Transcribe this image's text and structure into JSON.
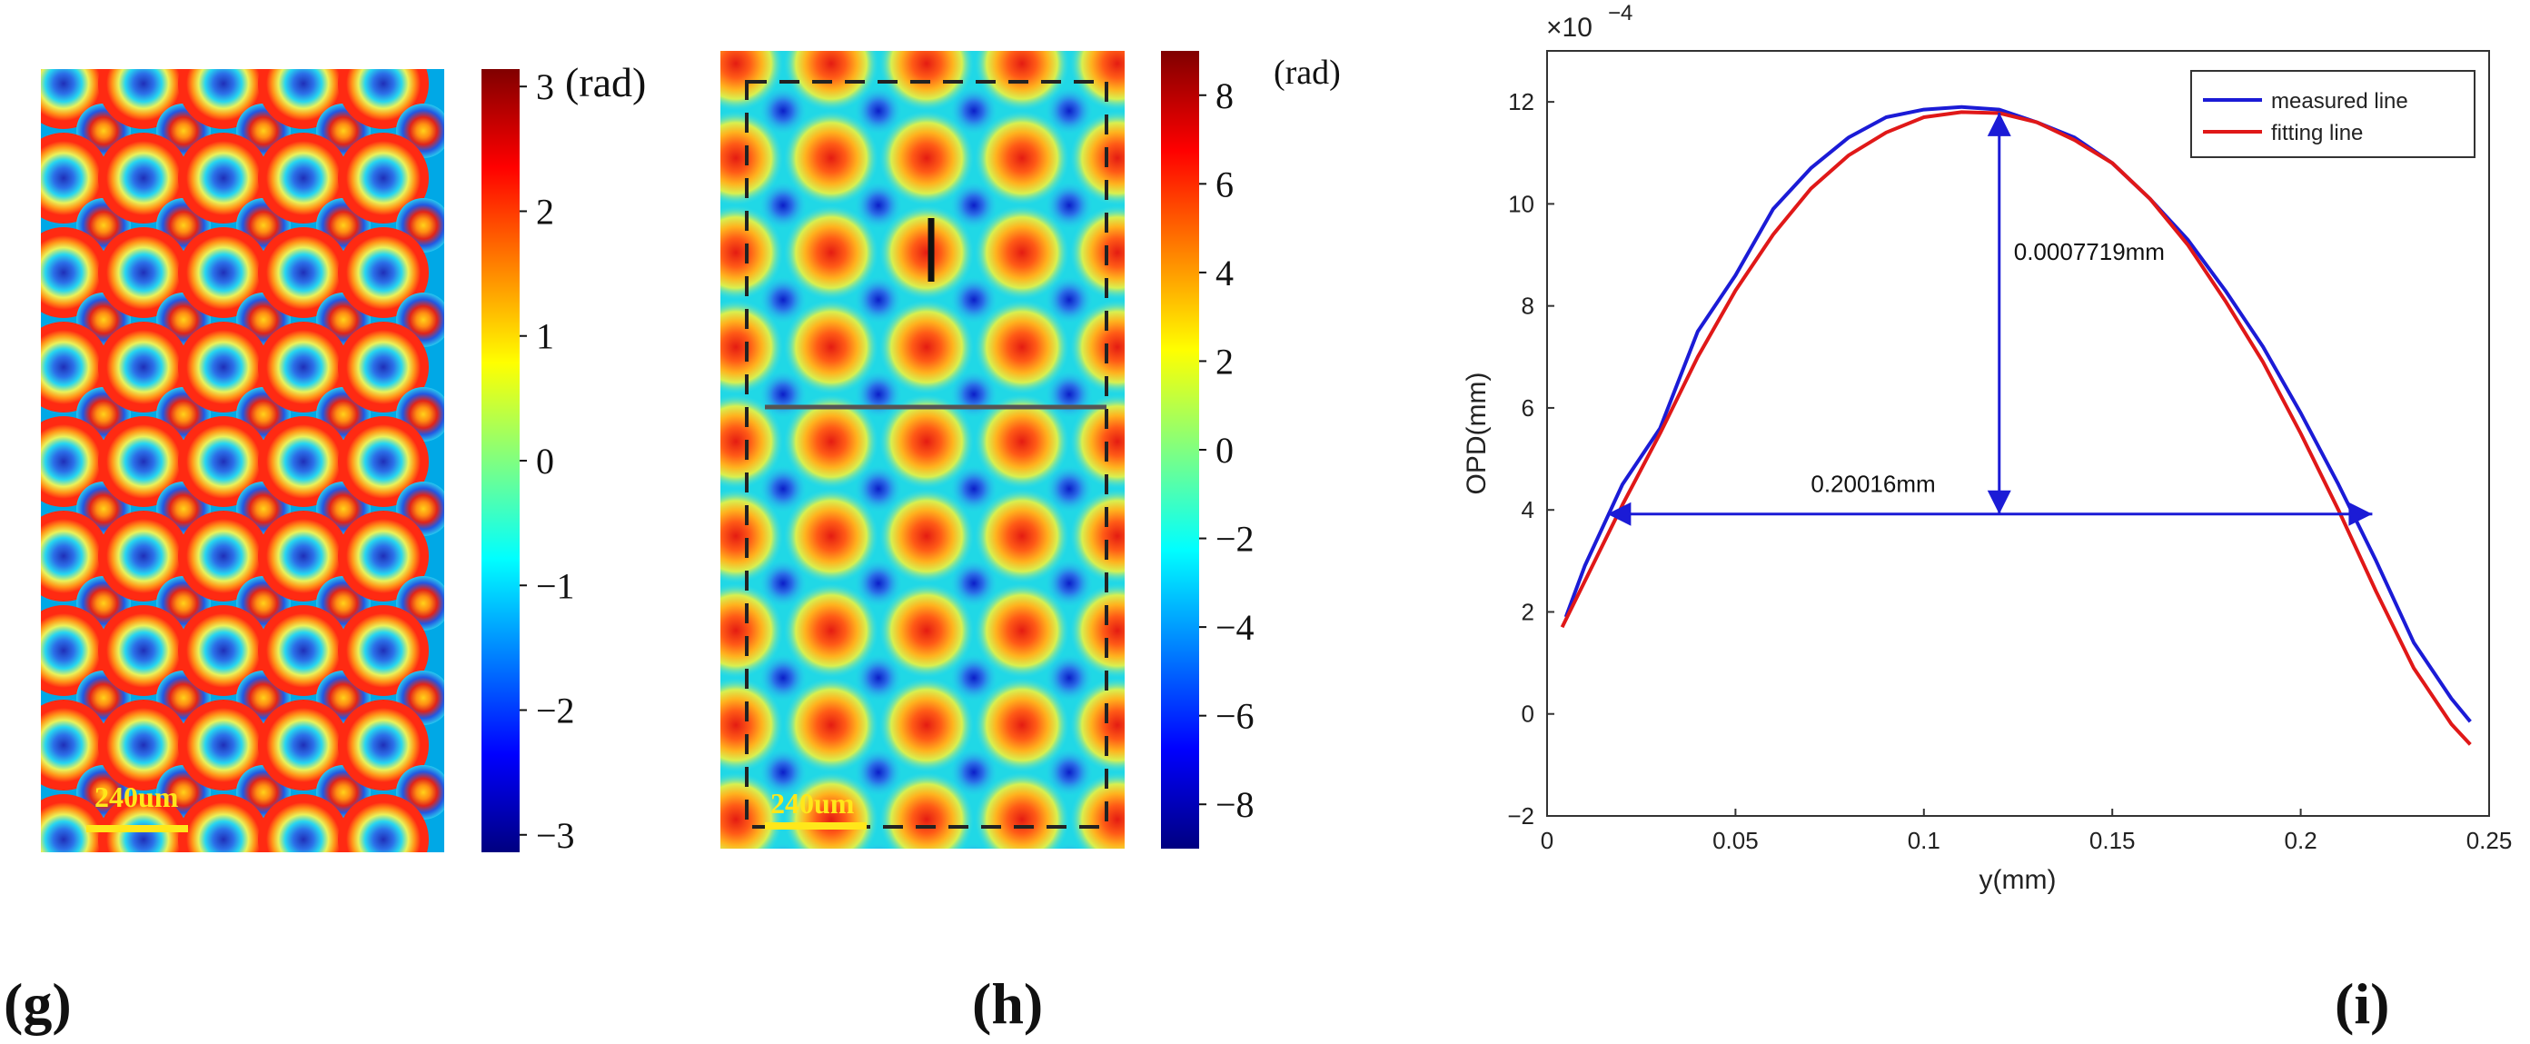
{
  "panels": {
    "g": {
      "label": "(g)",
      "colorbar": {
        "unit": "(rad)",
        "ticks": [
          "3",
          "2",
          "1",
          "0",
          "−1",
          "−2",
          "−3"
        ],
        "tick_values": [
          3,
          2,
          1,
          0,
          -1,
          -2,
          -3
        ],
        "range": [
          -3.14,
          3.14
        ]
      },
      "scale_bar": "240um"
    },
    "h": {
      "label": "(h)",
      "colorbar": {
        "unit": "(rad)",
        "ticks": [
          "8",
          "6",
          "4",
          "2",
          "0",
          "−2",
          "−4",
          "−6",
          "−8"
        ],
        "tick_values": [
          8,
          6,
          4,
          2,
          0,
          -2,
          -4,
          -6,
          -8
        ],
        "range": [
          -9,
          9
        ]
      },
      "scale_bar": "240um"
    },
    "i": {
      "label": "(i)"
    }
  },
  "chart_data": {
    "type": "line",
    "title": "",
    "xlabel": "y(mm)",
    "ylabel": "OPD(mm)",
    "exponent_label": "×10",
    "exponent_power": "−4",
    "xlim": [
      0,
      0.25
    ],
    "ylim": [
      -2,
      13
    ],
    "xticks": [
      0,
      0.05,
      0.1,
      0.15,
      0.2,
      0.25
    ],
    "xtick_labels": [
      "0",
      "0.05",
      "0.1",
      "0.15",
      "0.2",
      "0.25"
    ],
    "yticks": [
      -2,
      0,
      2,
      4,
      6,
      8,
      10,
      12
    ],
    "ytick_labels": [
      "−2",
      "0",
      "2",
      "4",
      "6",
      "8",
      "10",
      "12"
    ],
    "series": [
      {
        "name": "measured line",
        "color": "#1b1bd6",
        "x": [
          0.005,
          0.01,
          0.02,
          0.03,
          0.04,
          0.05,
          0.06,
          0.07,
          0.08,
          0.09,
          0.1,
          0.11,
          0.12,
          0.13,
          0.14,
          0.15,
          0.16,
          0.17,
          0.18,
          0.19,
          0.2,
          0.21,
          0.22,
          0.23,
          0.24,
          0.245
        ],
        "y": [
          1.9,
          2.9,
          4.5,
          5.6,
          7.5,
          8.6,
          9.9,
          10.7,
          11.3,
          11.7,
          11.85,
          11.9,
          11.85,
          11.6,
          11.3,
          10.8,
          10.1,
          9.3,
          8.3,
          7.2,
          5.9,
          4.5,
          3.0,
          1.4,
          0.3,
          -0.15
        ]
      },
      {
        "name": "fitting line",
        "color": "#e01818",
        "x": [
          0.004,
          0.01,
          0.02,
          0.03,
          0.04,
          0.05,
          0.06,
          0.07,
          0.08,
          0.09,
          0.1,
          0.11,
          0.12,
          0.13,
          0.14,
          0.15,
          0.16,
          0.17,
          0.18,
          0.19,
          0.2,
          0.21,
          0.22,
          0.23,
          0.24,
          0.245
        ],
        "y": [
          1.7,
          2.6,
          4.1,
          5.5,
          7.0,
          8.3,
          9.4,
          10.3,
          10.95,
          11.4,
          11.7,
          11.8,
          11.78,
          11.6,
          11.25,
          10.8,
          10.1,
          9.2,
          8.1,
          6.9,
          5.5,
          4.0,
          2.4,
          0.9,
          -0.2,
          -0.6
        ]
      }
    ],
    "annotations": [
      {
        "text": "0.0007719mm",
        "kind": "vertical-arrow",
        "x": 0.12,
        "y_from": 3.92,
        "y_to": 11.79
      },
      {
        "text": "0.20016mm",
        "kind": "horizontal-arrow",
        "y": 3.92,
        "x_from": 0.016,
        "x_to": 0.219
      }
    ],
    "legend_position": "top-right"
  }
}
